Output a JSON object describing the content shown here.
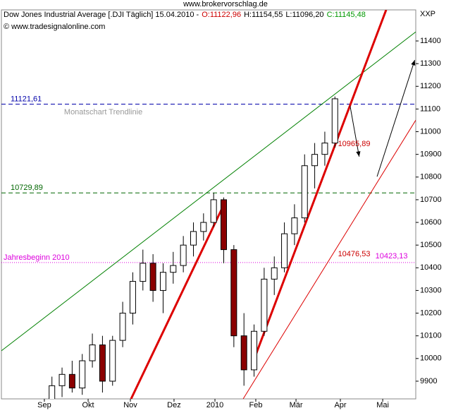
{
  "chart_data": {
    "type": "candlestick",
    "site": "www.brokervorschlag.de",
    "title": "Dow Jones Industrial Average [.DJI  Täglich] 15.04.2010 -",
    "ohlc_texts": [
      {
        "text": "O:11122,96",
        "color": "#cc0000"
      },
      {
        "text": "H:11154,55",
        "color": "#000000"
      },
      {
        "text": "L:11096,20",
        "color": "#000000"
      },
      {
        "text": "C:11145,48",
        "color": "#009900"
      }
    ],
    "copyright": "© www.tradesignalonline.com",
    "axis_unit": "XXP",
    "x": [
      5,
      6,
      7,
      8,
      9,
      10,
      11,
      12,
      13,
      14,
      15,
      16,
      17,
      18,
      19,
      20,
      21,
      22,
      23,
      24,
      25,
      26,
      27,
      28,
      29,
      30,
      31,
      32,
      33
    ],
    "open": [
      9800,
      9880,
      9930,
      9870,
      9990,
      10060,
      9900,
      10080,
      10200,
      10340,
      10420,
      10300,
      10380,
      10410,
      10500,
      10560,
      10600,
      10700,
      10480,
      10100,
      9950,
      10120,
      10350,
      10400,
      10550,
      10620,
      10850,
      10900,
      10950
    ],
    "high": [
      9920,
      9960,
      9990,
      10020,
      10110,
      10100,
      10100,
      10250,
      10380,
      10480,
      10460,
      10420,
      10470,
      10540,
      10600,
      10640,
      10730,
      10710,
      10500,
      10200,
      10150,
      10400,
      10450,
      10600,
      10680,
      10900,
      10950,
      11000,
      11155
    ],
    "low": [
      9750,
      9830,
      9850,
      9840,
      9960,
      9850,
      9880,
      10050,
      10150,
      10300,
      10250,
      10200,
      10330,
      10380,
      10450,
      10520,
      10580,
      10420,
      10050,
      9880,
      9920,
      10100,
      10280,
      10380,
      10500,
      10600,
      10750,
      10850,
      10930
    ],
    "close": [
      9880,
      9930,
      9870,
      9990,
      10060,
      9900,
      10080,
      10200,
      10340,
      10420,
      10300,
      10380,
      10410,
      10500,
      10560,
      10600,
      10700,
      10480,
      10100,
      9950,
      10120,
      10350,
      10400,
      10550,
      10620,
      10850,
      10900,
      10950,
      11145
    ],
    "up_color": "#ffffff",
    "down_color": "#8b0000",
    "xlim": [
      0,
      41
    ],
    "ylim": [
      9822,
      11537
    ],
    "yticks": [
      9900,
      10000,
      10100,
      10200,
      10300,
      10400,
      10500,
      10600,
      10700,
      10800,
      10900,
      11000,
      11100,
      11200,
      11300,
      11400
    ],
    "xticks": [
      {
        "value": 4.25,
        "label": "Sep"
      },
      {
        "value": 8.58,
        "label": "Okt"
      },
      {
        "value": 12.76,
        "label": "Nov"
      },
      {
        "value": 17.08,
        "label": "Dez"
      },
      {
        "value": 21.13,
        "label": "2010"
      },
      {
        "value": 25.17,
        "label": "Feb"
      },
      {
        "value": 29.15,
        "label": "Mär"
      },
      {
        "value": 33.54,
        "label": "Apr"
      },
      {
        "value": 37.73,
        "label": "Mai"
      }
    ],
    "levels": [
      {
        "value": 11121.61,
        "value_label": "11121,61",
        "color": "#0000aa",
        "dash": "6,4"
      },
      {
        "value": 10729.89,
        "value_label": "10729,89",
        "color": "#006600",
        "dash": "6,4"
      },
      {
        "value": 10423.13,
        "value_label": "Jahresbeginn 2010",
        "color": "#dd00dd",
        "dash": "1,2"
      }
    ],
    "lines": [
      {
        "x": [
          0,
          41
        ],
        "y": [
          10034,
          11440
        ],
        "color": "#008000",
        "width": 1
      },
      {
        "x": [
          12.83,
          22.17
        ],
        "y": [
          9822,
          10693
        ],
        "color": "#dd0000",
        "width": 3
      },
      {
        "x": [
          24.97,
          38.07
        ],
        "y": [
          9993,
          11537
        ],
        "color": "#dd0000",
        "width": 3
      },
      {
        "x": [
          23.92,
          41
        ],
        "y": [
          9822,
          11051
        ],
        "color": "#dd0000",
        "width": 1
      }
    ],
    "arrows": [
      {
        "x": [
          34.5,
          35.4
        ],
        "y": [
          11114,
          10890
        ]
      },
      {
        "x": [
          37.17,
          40.9
        ],
        "y": [
          10802,
          11316
        ]
      }
    ],
    "annotations": [
      {
        "text": "Monatschart Trendlinie",
        "x": 6.2,
        "y": 11085,
        "color": "#999999"
      },
      {
        "text": "10965,89",
        "x": 33.3,
        "y": 10945,
        "color": "#cc0000"
      },
      {
        "text": "10476,53",
        "x": 33.3,
        "y": 10460,
        "color": "#cc0000"
      },
      {
        "text": "10423,13",
        "x": 37.0,
        "y": 10450,
        "color": "#dd00dd"
      }
    ]
  }
}
